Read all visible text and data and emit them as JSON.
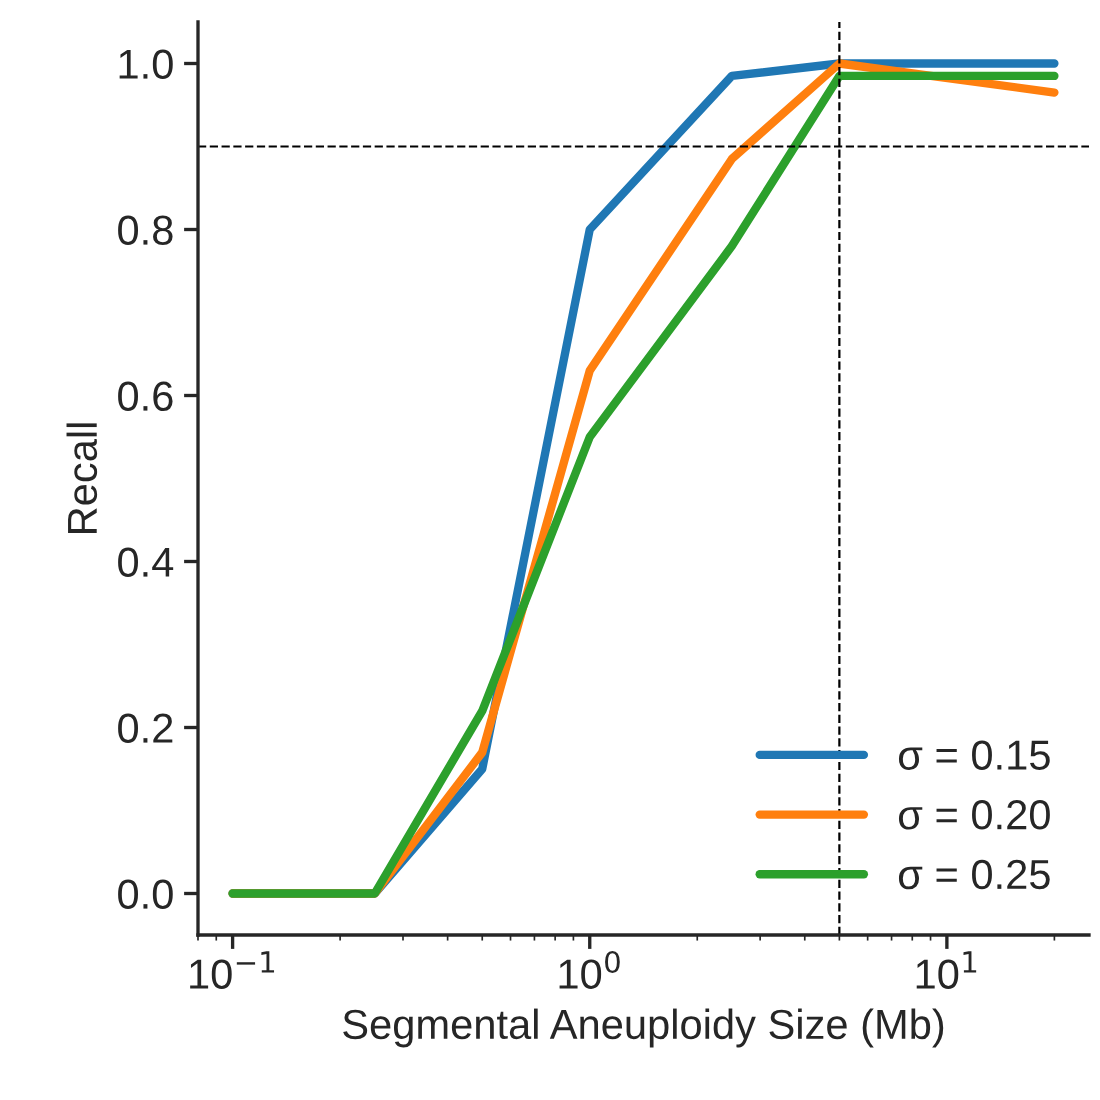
{
  "chart_data": {
    "type": "line",
    "xlabel": "Segmental Aneuploidy Size (Mb)",
    "ylabel": "Recall",
    "x": [
      0.1,
      0.25,
      0.5,
      1,
      2.5,
      5,
      20
    ],
    "series": [
      {
        "name": "σ = 0.15",
        "color": "#1f77b4",
        "values": [
          0,
          0,
          0.15,
          0.8,
          0.985,
          1.0,
          1.0
        ]
      },
      {
        "name": "σ = 0.20",
        "color": "#ff7f0e",
        "values": [
          0,
          0,
          0.17,
          0.63,
          0.885,
          1.0,
          0.965
        ]
      },
      {
        "name": "σ = 0.25",
        "color": "#2ca02c",
        "values": [
          0,
          0,
          0.22,
          0.55,
          0.78,
          0.985,
          0.985
        ]
      }
    ],
    "log": "x",
    "xlim": [
      0.08,
      25
    ],
    "xticks": [
      {
        "value": 0.1,
        "label": "10$^{−1}$"
      },
      {
        "value": 1,
        "label": "10$^{0}$"
      },
      {
        "value": 10,
        "label": "10$^{1}$"
      }
    ],
    "ylim": [
      -0.05,
      1.05
    ],
    "yticks": [
      {
        "value": 0,
        "label": "0.0"
      },
      0.2,
      0.4,
      0.6,
      0.8,
      {
        "value": 1,
        "label": "1.0"
      }
    ],
    "ref_lines": [
      {
        "axis": "y",
        "value": 0.9,
        "color": "#000000",
        "line_style": "dashed"
      },
      {
        "axis": "x",
        "value": 5,
        "color": "#000000",
        "line_style": "dashed"
      }
    ],
    "legend": "bottom right",
    "grid": false,
    "marker": "none",
    "line_style": "solid"
  }
}
